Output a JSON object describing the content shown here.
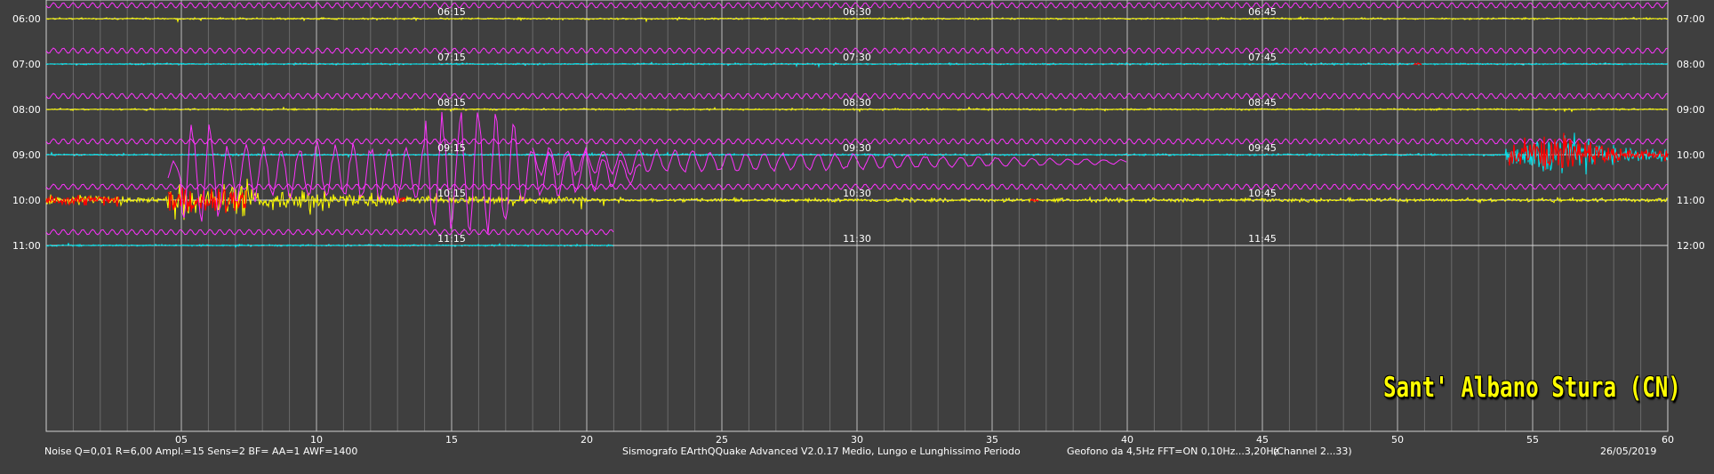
{
  "chart_data": {
    "type": "line",
    "title": "Sant' Albano Stura (CN)",
    "x_ticks": [
      "05",
      "10",
      "15",
      "20",
      "25",
      "30",
      "35",
      "40",
      "45",
      "50",
      "55",
      "60"
    ],
    "xlim": [
      0,
      60
    ],
    "left_labels": [
      "06:00",
      "07:00",
      "08:00",
      "09:00",
      "10:00",
      "11:00"
    ],
    "right_labels": [
      "07:00",
      "08:00",
      "09:00",
      "10:00",
      "11:00",
      "12:00"
    ],
    "quarter_labels": [
      [
        "06:15",
        "06:30",
        "06:45"
      ],
      [
        "07:15",
        "07:30",
        "07:45"
      ],
      [
        "08:15",
        "08:30",
        "08:45"
      ],
      [
        "09:15",
        "09:30",
        "09:45"
      ],
      [
        "10:15",
        "10:30",
        "10:45"
      ],
      [
        "11:15",
        "11:30",
        "11:45"
      ]
    ],
    "trace_colors": [
      "#ffff00",
      "#00e5ee",
      "#ffff00",
      "#00e5ee",
      "#ffff00",
      "#00e5ee"
    ],
    "long_period_color": "#ff33ff",
    "event_color": "#ff0000",
    "grid": true
  },
  "footer": {
    "left": "Noise Q=0,01 R=6,00 Ampl.=15 Sens=2 BF= AA=1 AWF=1400",
    "center": "Sismografo  EArthQQuake Advanced V2.0.17  Medio, Lungo e Lunghissimo Periodo",
    "right_info": "Geofono da 4,5Hz FFT=ON 0,10Hz...3,20Hz",
    "channel": "(Channel 2...33)",
    "date": "26/05/2019"
  },
  "colors": {
    "background": "#3f3f3f",
    "grid": "#bdbdbd",
    "text": "#ffffff"
  }
}
